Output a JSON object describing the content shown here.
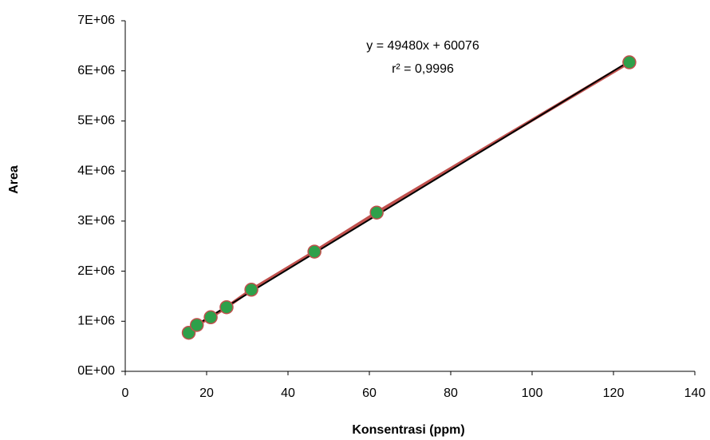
{
  "chart_data": {
    "type": "scatter",
    "x_label": "Konsentrasi (ppm)",
    "y_label": "Area",
    "x": [
      15.6,
      17.6,
      21.0,
      24.9,
      31.0,
      46.5,
      61.8,
      123.9
    ],
    "series": [
      {
        "color": "#c0504d",
        "marker_color": "#2ea04a",
        "values": [
          770000,
          925000,
          1080000,
          1280000,
          1630000,
          2390000,
          3170000,
          6170000
        ]
      }
    ],
    "trendline": {
      "color": "#000000",
      "slope": 49480,
      "intercept": 60076,
      "equation": "y = 49480x + 60076",
      "r2_label": "r² = 0,9996"
    },
    "xlim": [
      0,
      140
    ],
    "xticks": [
      0,
      20,
      40,
      60,
      80,
      100,
      120,
      140
    ],
    "ylim": [
      0,
      7000000
    ],
    "yticks": [
      {
        "value": 0,
        "label": "0E+00"
      },
      {
        "value": 1000000,
        "label": "1E+06"
      },
      {
        "value": 2000000,
        "label": "2E+06"
      },
      {
        "value": 3000000,
        "label": "3E+06"
      },
      {
        "value": 4000000,
        "label": "4E+06"
      },
      {
        "value": 5000000,
        "label": "5E+06"
      },
      {
        "value": 6000000,
        "label": "6E+06"
      },
      {
        "value": 7000000,
        "label": "7E+06"
      }
    ],
    "grid": false
  }
}
